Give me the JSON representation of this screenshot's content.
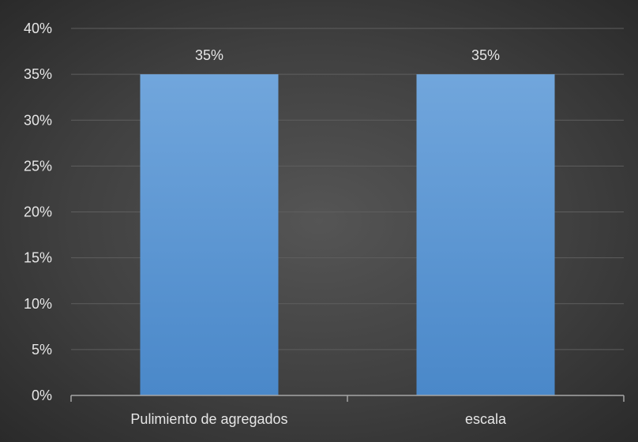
{
  "chart_data": {
    "type": "bar",
    "title": "",
    "xlabel": "",
    "ylabel": "",
    "categories": [
      "Pulimiento de agregados",
      "escala"
    ],
    "values": [
      0.35,
      0.35
    ],
    "data_labels": [
      "35%",
      "35%"
    ],
    "ylim": [
      0,
      0.4
    ],
    "yticks": [
      0,
      0.05,
      0.1,
      0.15,
      0.2,
      0.25,
      0.3,
      0.35,
      0.4
    ],
    "ytick_labels": [
      "0%",
      "5%",
      "10%",
      "15%",
      "20%",
      "25%",
      "30%",
      "35%",
      "40%"
    ],
    "grid": true,
    "legend": "none",
    "colors": {
      "bar_top": "#71a6dc",
      "bar_bottom": "#4a88c9",
      "gridline": "#5e5e5e",
      "axis": "#a6a6a6",
      "text": "#e6e6e6"
    }
  }
}
